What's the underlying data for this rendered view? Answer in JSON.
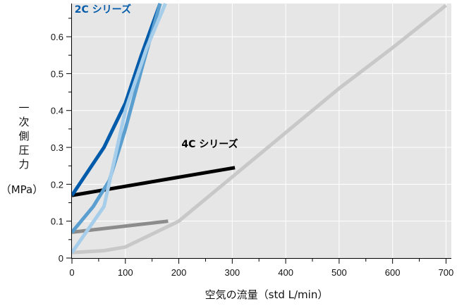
{
  "chart_data": {
    "type": "line",
    "xlabel": "空気の流量（std L/min）",
    "ylabel_chars": [
      "一",
      "次",
      "側",
      "圧",
      "力"
    ],
    "ylabel_unit": "（MPa）",
    "xlim": [
      0,
      710
    ],
    "ylim": [
      0,
      0.69
    ],
    "x_ticks": [
      0,
      100,
      200,
      300,
      400,
      500,
      600,
      700
    ],
    "x_tick_labels": [
      "0",
      "100",
      "200",
      "300",
      "400",
      "500",
      "600",
      "700"
    ],
    "y_ticks": [
      0,
      0.1,
      0.2,
      0.3,
      0.4,
      0.5,
      0.6
    ],
    "y_tick_labels": [
      "0",
      "0.1",
      "0.2",
      "0.3",
      "0.4",
      "0.5",
      "0.6"
    ],
    "x_minor_step": 50,
    "y_minor_step": 0.05,
    "grid": true,
    "plot_background": "#e6e6e6",
    "series": [
      {
        "color": "#c8c8c8",
        "width": 5,
        "x": [
          0,
          60,
          100,
          200,
          300,
          400,
          500,
          600,
          700
        ],
        "y": [
          0.015,
          0.02,
          0.03,
          0.1,
          0.22,
          0.34,
          0.46,
          0.57,
          0.685
        ]
      },
      {
        "color": "#8c8c8c",
        "width": 5,
        "x": [
          0,
          180
        ],
        "y": [
          0.07,
          0.1
        ]
      },
      {
        "color": "#000000",
        "width": 5,
        "x": [
          0,
          305
        ],
        "y": [
          0.17,
          0.245
        ]
      },
      {
        "color": "#005bab",
        "width": 5,
        "x": [
          0,
          60,
          100,
          130,
          165
        ],
        "y": [
          0.17,
          0.3,
          0.42,
          0.55,
          0.69
        ]
      },
      {
        "color": "#5b9fd0",
        "width": 5,
        "x": [
          0,
          40,
          70,
          100,
          130,
          165
        ],
        "y": [
          0.07,
          0.14,
          0.21,
          0.35,
          0.51,
          0.69
        ]
      },
      {
        "color": "#a6cde9",
        "width": 5,
        "x": [
          0,
          60,
          100,
          140,
          175
        ],
        "y": [
          0.015,
          0.14,
          0.4,
          0.57,
          0.69
        ]
      }
    ],
    "annotations": [
      {
        "text": "2C シリーズ",
        "x": 5,
        "y": 0.665,
        "color": "#005bab"
      },
      {
        "text": "4C シリーズ",
        "x": 205,
        "y": 0.3,
        "color": "#000000"
      }
    ],
    "accent_color": "#005bab"
  }
}
